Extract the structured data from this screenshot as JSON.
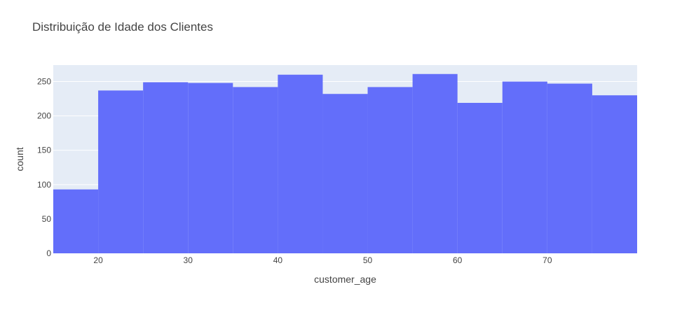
{
  "chart_data": {
    "type": "bar",
    "title": "Distribuição de Idade dos Clientes",
    "xlabel": "customer_age",
    "ylabel": "count",
    "bins": [
      {
        "start": 15,
        "end": 20,
        "count": 93
      },
      {
        "start": 20,
        "end": 25,
        "count": 237
      },
      {
        "start": 25,
        "end": 30,
        "count": 249
      },
      {
        "start": 30,
        "end": 35,
        "count": 248
      },
      {
        "start": 35,
        "end": 40,
        "count": 242
      },
      {
        "start": 40,
        "end": 45,
        "count": 260
      },
      {
        "start": 45,
        "end": 50,
        "count": 232
      },
      {
        "start": 50,
        "end": 55,
        "count": 242
      },
      {
        "start": 55,
        "end": 60,
        "count": 261
      },
      {
        "start": 60,
        "end": 65,
        "count": 219
      },
      {
        "start": 65,
        "end": 70,
        "count": 250
      },
      {
        "start": 70,
        "end": 75,
        "count": 247
      },
      {
        "start": 75,
        "end": 80,
        "count": 230
      }
    ],
    "xlim": [
      15,
      80
    ],
    "ylim": [
      0,
      274
    ],
    "x_ticks": [
      20,
      30,
      40,
      50,
      60,
      70
    ],
    "y_ticks": [
      0,
      50,
      100,
      150,
      200,
      250
    ],
    "grid": true,
    "colors": {
      "bar": "#636efa",
      "plot_background": "#e5ecf6",
      "grid": "#ffffff",
      "text": "#444444",
      "title": "#444444"
    }
  }
}
